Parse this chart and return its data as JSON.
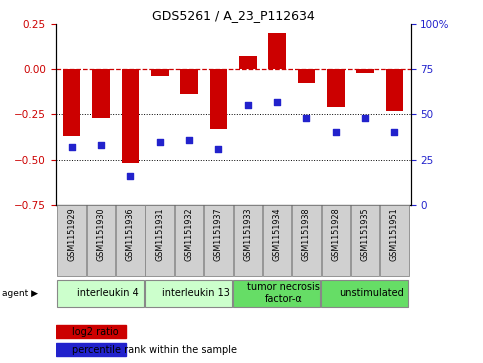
{
  "title": "GDS5261 / A_23_P112634",
  "samples": [
    "GSM1151929",
    "GSM1151930",
    "GSM1151936",
    "GSM1151931",
    "GSM1151932",
    "GSM1151937",
    "GSM1151933",
    "GSM1151934",
    "GSM1151938",
    "GSM1151928",
    "GSM1151935",
    "GSM1151951"
  ],
  "log2_ratio": [
    -0.37,
    -0.27,
    -0.52,
    -0.04,
    -0.14,
    -0.33,
    0.07,
    0.2,
    -0.08,
    -0.21,
    -0.02,
    -0.23
  ],
  "percentile": [
    32,
    33,
    16,
    35,
    36,
    31,
    55,
    57,
    48,
    40,
    48,
    40
  ],
  "agents": [
    {
      "label": "interleukin 4",
      "start": 0,
      "end": 3,
      "color": "#ccffcc"
    },
    {
      "label": "interleukin 13",
      "start": 3,
      "end": 6,
      "color": "#ccffcc"
    },
    {
      "label": "tumor necrosis\nfactor-α",
      "start": 6,
      "end": 9,
      "color": "#66dd66"
    },
    {
      "label": "unstimulated",
      "start": 9,
      "end": 12,
      "color": "#66dd66"
    }
  ],
  "ylim_left": [
    -0.75,
    0.25
  ],
  "ylim_right": [
    0,
    100
  ],
  "yticks_left": [
    0.25,
    0,
    -0.25,
    -0.5,
    -0.75
  ],
  "yticks_right": [
    100,
    75,
    50,
    25,
    0
  ],
  "bar_color": "#cc0000",
  "dot_color_hex": "#2222cc",
  "line0_color": "#cc0000",
  "hline_color": "#000000",
  "sample_box_color": "#d0d0d0",
  "sample_box_edge": "#888888"
}
